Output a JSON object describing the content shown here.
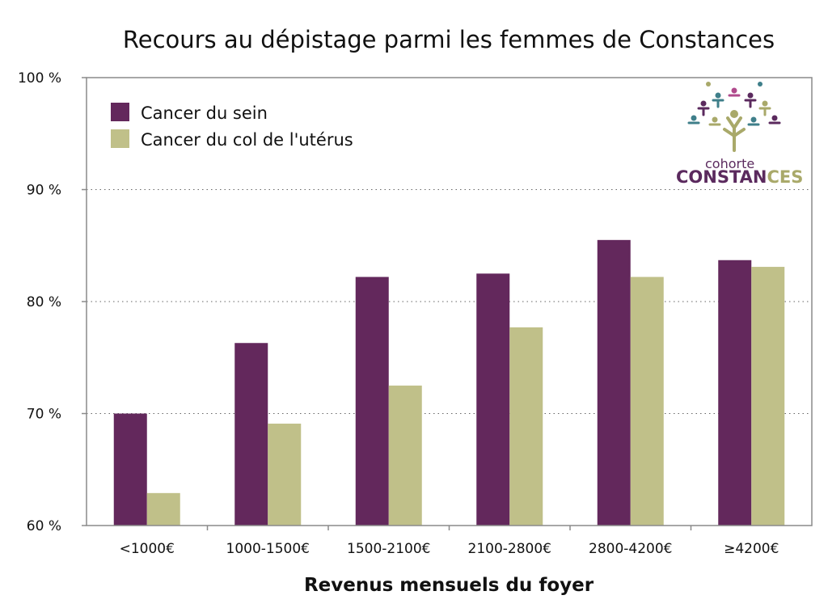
{
  "chart_data": {
    "type": "bar",
    "title": "Recours au dépistage parmi les femmes de Constances",
    "xlabel": "Revenus mensuels du foyer",
    "ylabel": "",
    "ylim": [
      60,
      100
    ],
    "yticks": [
      "60 %",
      "70 %",
      "80 %",
      "90 %",
      "100 %"
    ],
    "grid": true,
    "legend_position": "top-left",
    "categories": [
      "<1000€",
      "1000-1500€",
      "1500-2100€",
      "2100-2800€",
      "2800-4200€",
      "≥4200€"
    ],
    "series": [
      {
        "name": "Cancer du sein",
        "color": "#63285c",
        "values": [
          70,
          76.3,
          82.2,
          82.5,
          85.5,
          83.7
        ]
      },
      {
        "name": "Cancer du col de l'utérus",
        "color": "#c0c089",
        "values": [
          62.9,
          69.1,
          72.5,
          77.7,
          82.2,
          83.1
        ]
      }
    ]
  },
  "logo": {
    "line1": "cohorte",
    "line2_part1": "CONSTAN",
    "line2_part2": "CES",
    "colors": {
      "purple": "#5b2a5e",
      "olive": "#a9a96a",
      "teal": "#3f7f8a",
      "pink": "#b04a8c"
    }
  }
}
